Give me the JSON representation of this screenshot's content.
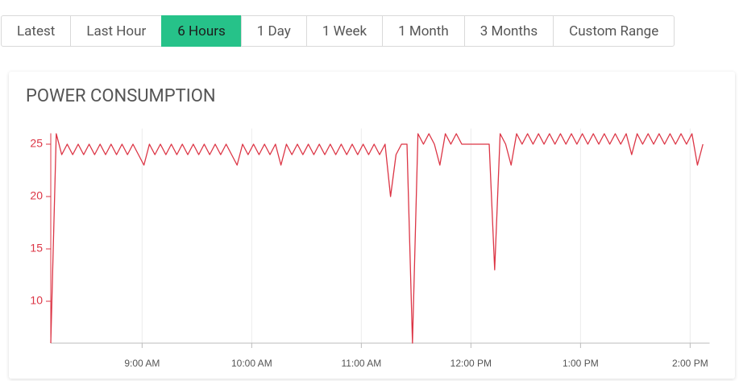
{
  "tabs": {
    "items": [
      "Latest",
      "Last Hour",
      "6 Hours",
      "1 Day",
      "1 Week",
      "1 Month",
      "3 Months",
      "Custom Range"
    ],
    "active": 2
  },
  "chart_data": {
    "type": "line",
    "title": "POWER CONSUMPTION",
    "color": "#dc3545",
    "x": [
      490,
      493,
      496,
      499,
      502,
      505,
      508,
      511,
      514,
      517,
      520,
      523,
      526,
      529,
      532,
      535,
      538,
      541,
      544,
      547,
      550,
      553,
      556,
      559,
      562,
      565,
      568,
      571,
      574,
      577,
      580,
      583,
      586,
      589,
      592,
      595,
      598,
      601,
      604,
      607,
      610,
      613,
      616,
      619,
      622,
      625,
      628,
      631,
      634,
      637,
      640,
      643,
      646,
      649,
      652,
      655,
      658,
      661,
      664,
      667,
      670,
      673,
      676,
      679,
      682,
      685,
      688,
      691,
      694,
      697,
      700,
      703,
      706,
      709,
      712,
      715,
      718,
      721,
      724,
      727,
      730,
      733,
      736,
      739,
      742,
      745,
      748,
      751,
      754,
      757,
      760,
      763,
      766,
      769,
      772,
      775,
      778,
      781,
      784,
      787,
      790,
      793,
      796,
      799,
      802,
      805,
      808,
      811,
      814,
      817,
      820,
      823,
      826,
      829,
      832,
      835,
      838,
      841,
      844,
      847
    ],
    "values": [
      6,
      26,
      24,
      25,
      24,
      25,
      24,
      25,
      24,
      25,
      24,
      25,
      24,
      25,
      24,
      25,
      24,
      23,
      25,
      24,
      25,
      24,
      25,
      24,
      25,
      24,
      25,
      24,
      25,
      24,
      25,
      24,
      25,
      24,
      23,
      25,
      24,
      25,
      24,
      25,
      24,
      25,
      23,
      25,
      24,
      25,
      24,
      25,
      24,
      25,
      24,
      25,
      24,
      25,
      24,
      25,
      24,
      25,
      24,
      25,
      24,
      25,
      20,
      24,
      25,
      25,
      6,
      26,
      25,
      26,
      25,
      23,
      26,
      25,
      26,
      25,
      25,
      25,
      25,
      25,
      25,
      13,
      26,
      25,
      23,
      26,
      25,
      26,
      25,
      26,
      25,
      26,
      25,
      26,
      25,
      26,
      25,
      26,
      25,
      26,
      25,
      26,
      25,
      26,
      25,
      26,
      24,
      26,
      25,
      26,
      25,
      26,
      25,
      26,
      25,
      26,
      25,
      26,
      23,
      25
    ],
    "xlim": [
      490,
      848
    ],
    "xticks": [
      {
        "value": 540,
        "label": "9:00 AM"
      },
      {
        "value": 600,
        "label": "10:00 AM"
      },
      {
        "value": 660,
        "label": "11:00 AM"
      },
      {
        "value": 720,
        "label": "12:00 PM"
      },
      {
        "value": 780,
        "label": "1:00 PM"
      },
      {
        "value": 840,
        "label": "2:00 PM"
      }
    ],
    "ylim": [
      6,
      26.5
    ],
    "yticks": [
      10,
      15,
      20,
      25
    ],
    "grid": true
  }
}
